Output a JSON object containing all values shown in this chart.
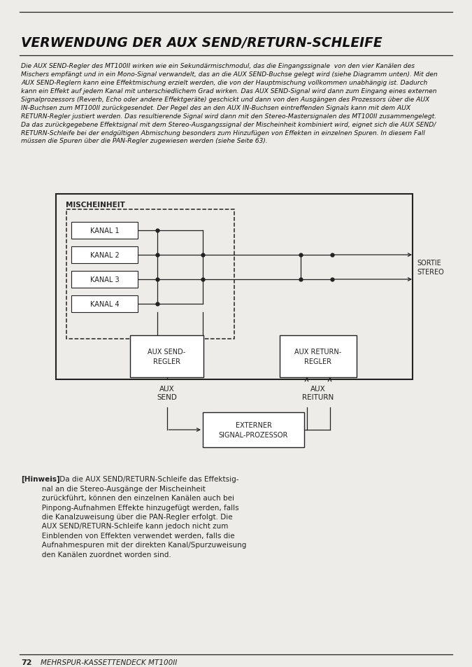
{
  "title": "VERWENDUNG DER AUX SEND/RETURN-SCHLEIFE",
  "body_text": "Die AUX SEND-Regler des MT100II wirken wie ein Sekundärmischmodul, das die Eingangssignale  von den vier Kanälen des\nMischers empfängt und in ein Mono-Signal verwandelt, das an die AUX SEND-Buchse gelegt wird (siehe Diagramm unten). Mit den\nAUX SEND-Reglern kann eine Effektmischung erzielt werden, die von der Hauptmischung vollkommen unabhängig ist. Dadurch\nkann ein Effekt auf jedem Kanal mit unterschiedlichem Grad wirken. Das AUX SEND-Signal wird dann zum Eingang eines externen\nSignalprozessors (Reverb, Echo oder andere Effektgeräte) geschickt und dann von den Ausgängen des Prozessors über die AUX\nIN-Buchsen zum MT100II zurückgesendet. Der Pegel des an den AUX IN-Buchsen eintreffenden Signals kann mit dem AUX\nRETURN-Regler justiert werden. Das resultierende Signal wird dann mit den Stereo-Mastersignalen des MT100II zusammengelegt.\nDa das zurückgegebene Effektsignal mit dem Stereo-Ausgangssignal der Mischeinheit kombiniert wird, eignet sich die AUX SEND/\nRETURN-Schleife bei der endgültigen Abmischung besonders zum Hinzufügen von Effekten in einzelnen Spuren. In diesem Fall\nmüssen die Spuren über die PAN-Regler zugewiesen werden (siehe Seite 63).",
  "hinweis_bold": "[Hinweis]",
  "hinweis_line1": " Da die AUX SEND/RETURN-Schleife das Effektsig-",
  "hinweis_rest": "   nal an die Stereo-Ausgänge der Mischeinheit\n   zurückführt, können den einzelnen Kanälen auch bei\n   Pinpong-Aufnahmen Effekte hinzugefügt werden, falls\n   die Kanalzuweisung über die PAN-Regler erfolgt. Die\n   AUX SEND/RETURN-Schleife kann jedoch nicht zum\n   Einblenden von Effekten verwendet werden, falls die\n   Aufnahmespuren mit der direkten Kanal/Spurzuweisung\n   den Kanälen zuordnet worden sind.",
  "footer_num": "72",
  "footer_text": "MEHRSPUR-KASSETTENDECK MT100II",
  "bg_color": "#eeece8",
  "text_color": "#111111",
  "channels": [
    "KANAL 1",
    "KANAL 2",
    "KANAL 3",
    "KANAL 4"
  ]
}
